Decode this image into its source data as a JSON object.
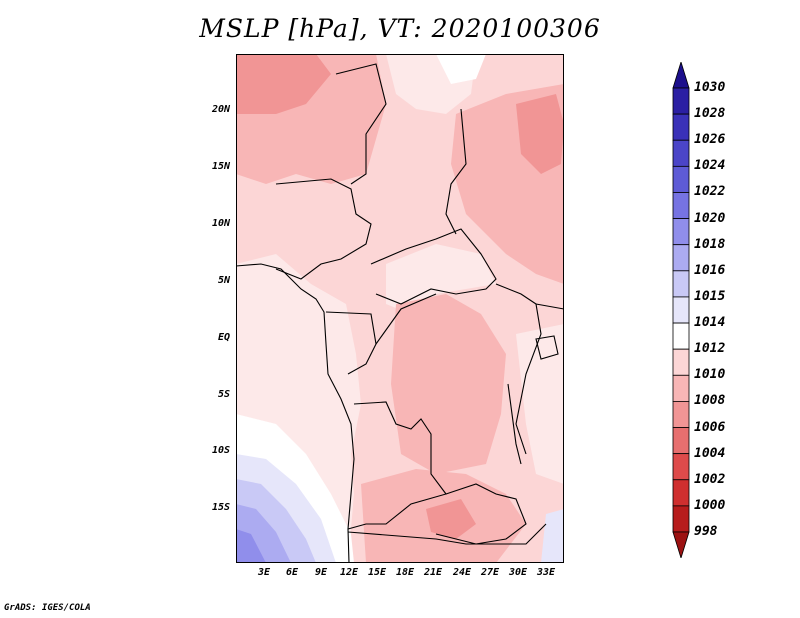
{
  "title": "MSLP [hPa], VT: 2020100306",
  "credit": "GrADS: IGES/COLA",
  "map": {
    "region": "Central Africa",
    "variable": "Mean sea level pressure",
    "units": "hPa",
    "lat_labels": [
      "20N",
      "15N",
      "10N",
      "5N",
      "EQ",
      "5S",
      "10S",
      "15S"
    ],
    "lon_labels": [
      "3E",
      "6E",
      "9E",
      "12E",
      "15E",
      "18E",
      "21E",
      "24E",
      "27E",
      "30E",
      "33E"
    ]
  },
  "colorbar": {
    "levels": [
      "1030",
      "1028",
      "1026",
      "1024",
      "1022",
      "1020",
      "1018",
      "1016",
      "1015",
      "1014",
      "1012",
      "1010",
      "1008",
      "1006",
      "1004",
      "1002",
      "1000",
      "998"
    ],
    "colors": [
      "#1c0f8c",
      "#2b1fa3",
      "#3a31b8",
      "#4b45c8",
      "#5e5bd6",
      "#7673e2",
      "#908eeb",
      "#acabf1",
      "#c9c9f6",
      "#e6e6fa",
      "#ffffff",
      "#fcd6d6",
      "#f8b6b6",
      "#f19595",
      "#e76f6f",
      "#de4b4b",
      "#cf2f2f",
      "#b71c1c",
      "#9c1212"
    ],
    "map_colors": {
      "p1008": "#f19595",
      "p1010": "#f8b6b6",
      "p1012": "#fcd6d6",
      "p1014": "#fde9e9",
      "p1015": "#ffffff",
      "p1016": "#e6e6fa",
      "p1018": "#c9c9f6",
      "p1020": "#acabf1",
      "p1022": "#908eeb"
    }
  }
}
